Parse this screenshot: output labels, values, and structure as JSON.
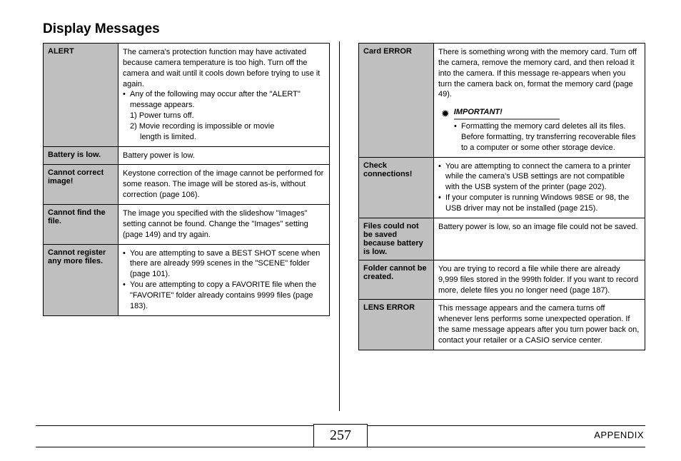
{
  "title": "Display Messages",
  "leftTable": [
    {
      "label": "ALERT",
      "html": "The camera's protection function may have activated because camera temperature is too high. Turn off the camera and wait until it cools down before trying to use it again.<ul class='bul'><li>Any of the following may occur after the \"ALERT\" message appears.</li></ul><div class='sub-num'>1) Power turns off.<br>2) Movie recording is impossible or movie<span class='indent'>length is limited.</span></div>"
    },
    {
      "label": "Battery is low.",
      "html": "Battery power is low."
    },
    {
      "label": "Cannot correct image!",
      "html": "Keystone correction of the image cannot be performed for some reason. The image will be stored as-is, without correction (page 106)."
    },
    {
      "label": "Cannot find the file.",
      "html": "The image you specified with the slideshow \"Images\" setting cannot be found. Change the \"Images\" setting (page 149) and try again."
    },
    {
      "label": "Cannot register any more files.",
      "html": "<ul class='bul'><li>You are attempting to save a BEST SHOT scene when there are already 999 scenes in the \"SCENE\" folder (page 101).</li><li>You are attempting to copy a FAVORITE file when the \"FAVORITE\" folder already contains 9999 files (page 183).</li></ul>"
    }
  ],
  "rightTable": [
    {
      "label": "Card ERROR",
      "html": "There is something wrong with the memory card. Turn off the camera, remove the memory card, and then reload it into the camera. If this message re-appears when you turn the camera back on, format the memory card (page 49).<div class='important-box'><div class='important-head'><span class='burst'>✹</span><span class='important-label'>IMPORTANT!</span></div><ul class='bul'><li>Formatting the memory card deletes all its files. Before formatting, try transferring recoverable files to a computer or some other storage device.</li></ul></div>"
    },
    {
      "label": "Check connections!",
      "html": "<ul class='bul'><li>You are attempting to connect the camera to a printer while the camera's USB settings are not compatible with the USB system of the printer (page 202).</li><li>If your computer is running Windows 98SE or 98, the USB driver may not be installed (page 215).</li></ul>"
    },
    {
      "label": "Files could not be saved because battery is low.",
      "html": "Battery power is low, so an image file could not be saved."
    },
    {
      "label": "Folder cannot be created.",
      "html": "You are trying to record a file while there are already 9,999 files stored in the 999th folder. If you want to record more, delete files you no longer need (page 187)."
    },
    {
      "label": "LENS ERROR",
      "html": "This message appears and the camera turns off whenever lens performs some unexpected operation. If the same message appears after you turn power back on, contact your retailer or a CASIO service center."
    }
  ],
  "pageNumber": "257",
  "appendix": "APPENDIX"
}
